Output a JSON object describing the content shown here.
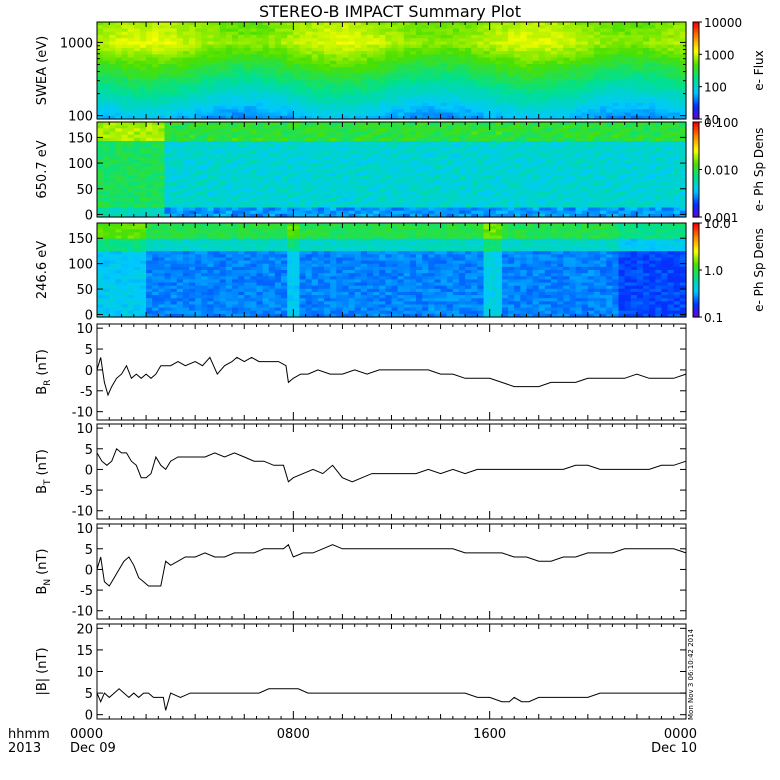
{
  "title": "STEREO-B IMPACT Summary Plot",
  "timestamp": "Mon Nov  3 06:10:42 2014",
  "time_axis": {
    "row1_label": "hhmm",
    "row2_label": "2013",
    "start_date": "Dec 09",
    "end_date": "Dec 10",
    "major_ticks": [
      {
        "hours": 0,
        "label": "0000"
      },
      {
        "hours": 8,
        "label": "0800"
      },
      {
        "hours": 16,
        "label": "1600"
      },
      {
        "hours": 24,
        "label": "0000"
      }
    ]
  },
  "colors": {
    "axis": "#000000",
    "trace": "#000000",
    "background": "#ffffff"
  },
  "colormap": [
    "#6a00d8",
    "#0033ff",
    "#00c8ff",
    "#00e090",
    "#4ce000",
    "#ffff00",
    "#ff8800",
    "#ff0000"
  ],
  "chart_data": [
    {
      "type": "heatmap",
      "ylabel": "SWEA (eV)",
      "yscale": "log",
      "ylim": [
        90,
        1900
      ],
      "yticks": [
        {
          "value": 100,
          "label": "100"
        },
        {
          "value": 1000,
          "label": "1000"
        }
      ],
      "colorbar": {
        "label": "e- Flux",
        "scale": "log",
        "range": [
          10,
          10000
        ],
        "ticks": [
          {
            "value": 10,
            "label": "10"
          },
          {
            "value": 100,
            "label": "100"
          },
          {
            "value": 1000,
            "label": "1000"
          },
          {
            "value": 10000,
            "label": "10000"
          }
        ]
      },
      "xlim": [
        0,
        24
      ]
    },
    {
      "type": "heatmap",
      "ylabel": "650.7 eV",
      "ylim": [
        -5,
        180
      ],
      "yticks": [
        {
          "value": 0,
          "label": "0"
        },
        {
          "value": 50,
          "label": "50"
        },
        {
          "value": 100,
          "label": "100"
        },
        {
          "value": 150,
          "label": "150"
        }
      ],
      "colorbar": {
        "label": "e- Ph Sp Dens",
        "scale": "log",
        "range": [
          0.001,
          0.1
        ],
        "ticks": [
          {
            "value": 0.001,
            "label": "0.001"
          },
          {
            "value": 0.01,
            "label": "0.010"
          },
          {
            "value": 0.1,
            "label": "0.100"
          }
        ]
      },
      "xlim": [
        0,
        24
      ]
    },
    {
      "type": "heatmap",
      "ylabel": "246.6 eV",
      "ylim": [
        -5,
        180
      ],
      "yticks": [
        {
          "value": 0,
          "label": "0"
        },
        {
          "value": 50,
          "label": "50"
        },
        {
          "value": 100,
          "label": "100"
        },
        {
          "value": 150,
          "label": "150"
        }
      ],
      "colorbar": {
        "label": "e- Ph Sp Dens",
        "scale": "log",
        "range": [
          0.1,
          10
        ],
        "ticks": [
          {
            "value": 0.1,
            "label": "0.1"
          },
          {
            "value": 1,
            "label": "1.0"
          },
          {
            "value": 10,
            "label": "10.0"
          }
        ]
      },
      "xlim": [
        0,
        24
      ]
    },
    {
      "type": "line",
      "ylabel": "B",
      "ylabel_sub": "R",
      "ylabel_unit": "(nT)",
      "ylim": [
        -12,
        11
      ],
      "xlim": [
        0,
        24
      ],
      "yticks": [
        {
          "value": -10,
          "label": "-10"
        },
        {
          "value": -5,
          "label": "-5"
        },
        {
          "value": 0,
          "label": "0"
        },
        {
          "value": 5,
          "label": "5"
        },
        {
          "value": 10,
          "label": "10"
        }
      ],
      "x": [
        0,
        0.15,
        0.3,
        0.45,
        0.6,
        0.8,
        1.0,
        1.2,
        1.4,
        1.6,
        1.8,
        2.0,
        2.2,
        2.4,
        2.6,
        2.8,
        3.0,
        3.3,
        3.6,
        4.0,
        4.3,
        4.6,
        4.9,
        5.2,
        5.5,
        5.7,
        6.0,
        6.3,
        6.6,
        7.0,
        7.4,
        7.7,
        7.8,
        8.0,
        8.3,
        8.6,
        9.0,
        9.5,
        10.0,
        10.5,
        11.0,
        11.5,
        12.0,
        12.5,
        13.0,
        13.5,
        14.0,
        14.5,
        15.0,
        15.5,
        16.0,
        16.5,
        17.0,
        17.5,
        18.0,
        18.5,
        19.0,
        19.5,
        20.0,
        20.5,
        21.0,
        21.5,
        22.0,
        22.5,
        23.0,
        23.5,
        24.0
      ],
      "y": [
        0,
        3,
        -3,
        -6,
        -4,
        -2,
        -1,
        1,
        -2,
        -1,
        -2,
        -1,
        -2,
        -1,
        1,
        1,
        1,
        2,
        1,
        2,
        1,
        3,
        -1,
        1,
        2,
        3,
        2,
        3,
        2,
        2,
        2,
        1,
        -3,
        -2,
        -1,
        -1,
        0,
        -1,
        -1,
        0,
        -1,
        0,
        0,
        0,
        0,
        0,
        -1,
        -1,
        -2,
        -2,
        -2,
        -3,
        -4,
        -4,
        -4,
        -3,
        -3,
        -3,
        -2,
        -2,
        -2,
        -2,
        -1,
        -2,
        -2,
        -2,
        -1
      ]
    },
    {
      "type": "line",
      "ylabel": "B",
      "ylabel_sub": "T",
      "ylabel_unit": "(nT)",
      "ylim": [
        -12,
        11
      ],
      "xlim": [
        0,
        24
      ],
      "yticks": [
        {
          "value": -10,
          "label": "-10"
        },
        {
          "value": -5,
          "label": "-5"
        },
        {
          "value": 0,
          "label": "0"
        },
        {
          "value": 5,
          "label": "5"
        },
        {
          "value": 10,
          "label": "10"
        }
      ],
      "x": [
        0,
        0.2,
        0.4,
        0.6,
        0.8,
        1.0,
        1.2,
        1.4,
        1.6,
        1.8,
        2.0,
        2.2,
        2.4,
        2.6,
        2.8,
        3.0,
        3.3,
        3.6,
        4.0,
        4.4,
        4.8,
        5.2,
        5.6,
        6.0,
        6.4,
        6.8,
        7.2,
        7.6,
        7.8,
        8.0,
        8.4,
        8.8,
        9.2,
        9.6,
        10.0,
        10.4,
        10.8,
        11.2,
        11.6,
        12.0,
        12.5,
        13.0,
        13.5,
        14.0,
        14.5,
        15.0,
        15.5,
        16.0,
        16.5,
        17.0,
        17.5,
        18.0,
        18.5,
        19.0,
        19.5,
        20.0,
        20.5,
        21.0,
        21.5,
        22.0,
        22.5,
        23.0,
        23.5,
        24.0
      ],
      "y": [
        4,
        2,
        1,
        2,
        5,
        4,
        4,
        2,
        1,
        -2,
        -2,
        -1,
        3,
        1,
        0,
        2,
        3,
        3,
        3,
        3,
        4,
        3,
        4,
        3,
        2,
        2,
        1,
        1,
        -3,
        -2,
        -1,
        0,
        -1,
        1,
        -2,
        -3,
        -2,
        -1,
        -1,
        -1,
        -1,
        -1,
        0,
        -1,
        0,
        -1,
        0,
        0,
        0,
        0,
        0,
        0,
        0,
        0,
        1,
        1,
        0,
        0,
        0,
        0,
        0,
        1,
        1,
        2
      ]
    },
    {
      "type": "line",
      "ylabel": "B",
      "ylabel_sub": "N",
      "ylabel_unit": "(nT)",
      "ylim": [
        -12,
        11
      ],
      "xlim": [
        0,
        24
      ],
      "yticks": [
        {
          "value": -10,
          "label": "-10"
        },
        {
          "value": -5,
          "label": "-5"
        },
        {
          "value": 0,
          "label": "0"
        },
        {
          "value": 5,
          "label": "5"
        },
        {
          "value": 10,
          "label": "10"
        }
      ],
      "x": [
        0,
        0.15,
        0.3,
        0.5,
        0.7,
        0.9,
        1.1,
        1.3,
        1.5,
        1.7,
        1.9,
        2.1,
        2.3,
        2.5,
        2.6,
        2.8,
        3.0,
        3.3,
        3.6,
        4.0,
        4.4,
        4.8,
        5.2,
        5.6,
        6.0,
        6.4,
        6.8,
        7.2,
        7.6,
        7.8,
        8.0,
        8.4,
        8.8,
        9.2,
        9.6,
        10.0,
        10.5,
        11.0,
        11.5,
        12.0,
        12.5,
        13.0,
        13.5,
        14.0,
        14.5,
        15.0,
        15.5,
        16.0,
        16.5,
        17.0,
        17.5,
        18.0,
        18.5,
        19.0,
        19.5,
        20.0,
        20.5,
        21.0,
        21.5,
        22.0,
        22.5,
        23.0,
        23.5,
        24.0
      ],
      "y": [
        0,
        3,
        -3,
        -4,
        -2,
        0,
        2,
        3,
        1,
        -2,
        -3,
        -4,
        -4,
        -4,
        -4,
        2,
        1,
        2,
        3,
        3,
        4,
        3,
        3,
        4,
        4,
        4,
        5,
        5,
        5,
        6,
        3,
        4,
        4,
        5,
        6,
        5,
        5,
        5,
        5,
        5,
        5,
        5,
        5,
        5,
        5,
        4,
        4,
        4,
        4,
        3,
        3,
        2,
        2,
        3,
        3,
        4,
        4,
        4,
        5,
        5,
        5,
        5,
        5,
        4
      ]
    },
    {
      "type": "line",
      "ylabel": "|B|",
      "ylabel_sub": "",
      "ylabel_unit": "(nT)",
      "ylim": [
        -1,
        21
      ],
      "xlim": [
        0,
        24
      ],
      "yticks": [
        {
          "value": 0,
          "label": "0"
        },
        {
          "value": 5,
          "label": "5"
        },
        {
          "value": 10,
          "label": "10"
        },
        {
          "value": 15,
          "label": "15"
        },
        {
          "value": 20,
          "label": "20"
        }
      ],
      "x": [
        0,
        0.15,
        0.3,
        0.5,
        0.7,
        0.9,
        1.1,
        1.3,
        1.5,
        1.7,
        1.9,
        2.1,
        2.3,
        2.5,
        2.7,
        2.8,
        3.0,
        3.4,
        3.8,
        4.2,
        4.6,
        5.0,
        5.4,
        5.8,
        6.2,
        6.6,
        7.0,
        7.4,
        7.8,
        8.2,
        8.6,
        9.0,
        9.5,
        10.0,
        10.5,
        11.0,
        11.5,
        12.0,
        12.5,
        13.0,
        13.5,
        14.0,
        14.5,
        15.0,
        15.5,
        16.0,
        16.5,
        16.8,
        17.0,
        17.3,
        17.6,
        18.0,
        18.5,
        19.0,
        19.5,
        20.0,
        20.5,
        21.0,
        21.5,
        22.0,
        22.5,
        23.0,
        23.5,
        24.0
      ],
      "y": [
        5,
        3,
        5,
        4,
        5,
        6,
        5,
        4,
        5,
        4,
        5,
        5,
        4,
        4,
        4,
        1,
        5,
        4,
        5,
        5,
        5,
        5,
        5,
        5,
        5,
        5,
        6,
        6,
        6,
        6,
        5,
        5,
        5,
        5,
        5,
        5,
        5,
        5,
        5,
        5,
        5,
        5,
        5,
        5,
        4,
        4,
        3,
        3,
        4,
        3,
        3,
        4,
        4,
        4,
        4,
        4,
        5,
        5,
        5,
        5,
        5,
        5,
        5,
        5
      ]
    }
  ]
}
